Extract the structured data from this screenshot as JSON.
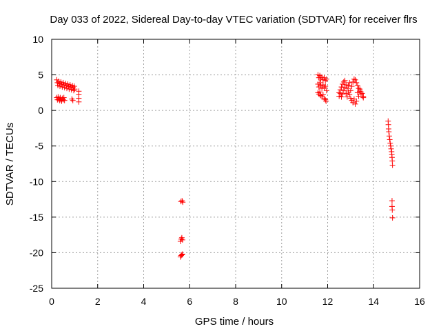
{
  "chart_data": {
    "type": "scatter",
    "title": "Day 033 of 2022, Sidereal Day-to-day VTEC variation (SDTVAR) for receiver flrs",
    "xlabel": "GPS time / hours",
    "ylabel": "SDTVAR / TECUs",
    "xlim": [
      0,
      16
    ],
    "ylim": [
      -25,
      10
    ],
    "xticks": [
      "0",
      "2",
      "4",
      "6",
      "8",
      "10",
      "12",
      "14",
      "16"
    ],
    "yticks": [
      "10",
      "5",
      "0",
      "-5",
      "-10",
      "-15",
      "-20",
      "-25"
    ],
    "grid": true,
    "marker": "plus",
    "color": "#ff0000",
    "series": [
      {
        "points": [
          [
            0.22,
            4.3
          ],
          [
            0.25,
            3.9
          ],
          [
            0.27,
            3.5
          ],
          [
            0.3,
            4.1
          ],
          [
            0.33,
            3.8
          ],
          [
            0.36,
            3.4
          ],
          [
            0.4,
            4.0
          ],
          [
            0.43,
            3.7
          ],
          [
            0.46,
            3.3
          ],
          [
            0.5,
            3.9
          ],
          [
            0.53,
            3.6
          ],
          [
            0.56,
            3.2
          ],
          [
            0.6,
            3.8
          ],
          [
            0.63,
            3.5
          ],
          [
            0.66,
            3.1
          ],
          [
            0.7,
            3.7
          ],
          [
            0.73,
            3.4
          ],
          [
            0.76,
            3.0
          ],
          [
            0.8,
            3.6
          ],
          [
            0.83,
            3.3
          ],
          [
            0.86,
            2.9
          ],
          [
            0.9,
            3.5
          ],
          [
            0.93,
            3.2
          ],
          [
            0.96,
            2.8
          ],
          [
            0.98,
            3.4
          ],
          [
            1.0,
            3.0
          ],
          [
            0.22,
            1.8
          ],
          [
            0.25,
            1.5
          ],
          [
            0.28,
            1.9
          ],
          [
            0.31,
            1.6
          ],
          [
            0.34,
            1.4
          ],
          [
            0.37,
            1.8
          ],
          [
            0.4,
            1.5
          ],
          [
            0.43,
            1.3
          ],
          [
            0.46,
            1.7
          ],
          [
            0.5,
            1.5
          ],
          [
            0.53,
            1.8
          ],
          [
            0.56,
            1.4
          ],
          [
            0.88,
            1.6
          ],
          [
            0.92,
            1.4
          ],
          [
            1.18,
            2.7
          ],
          [
            1.18,
            2.2
          ],
          [
            1.18,
            1.7
          ],
          [
            1.18,
            1.2
          ],
          [
            5.62,
            -12.8
          ],
          [
            5.67,
            -12.7
          ],
          [
            5.7,
            -12.9
          ],
          [
            5.6,
            -18.4
          ],
          [
            5.63,
            -18.1
          ],
          [
            5.66,
            -17.9
          ],
          [
            5.69,
            -18.2
          ],
          [
            5.6,
            -20.6
          ],
          [
            5.63,
            -20.4
          ],
          [
            5.66,
            -20.3
          ],
          [
            5.69,
            -20.2
          ],
          [
            11.58,
            5.0
          ],
          [
            11.62,
            4.6
          ],
          [
            11.66,
            4.9
          ],
          [
            11.7,
            4.4
          ],
          [
            11.75,
            4.7
          ],
          [
            11.8,
            4.3
          ],
          [
            11.85,
            4.6
          ],
          [
            11.9,
            4.2
          ],
          [
            11.58,
            3.7
          ],
          [
            11.62,
            3.3
          ],
          [
            11.66,
            3.9
          ],
          [
            11.7,
            3.5
          ],
          [
            11.75,
            3.1
          ],
          [
            11.8,
            3.6
          ],
          [
            11.85,
            3.2
          ],
          [
            11.9,
            3.4
          ],
          [
            11.58,
            2.5
          ],
          [
            11.62,
            2.3
          ],
          [
            11.66,
            2.6
          ],
          [
            11.7,
            2.1
          ],
          [
            11.75,
            1.9
          ],
          [
            11.8,
            2.2
          ],
          [
            11.85,
            1.7
          ],
          [
            11.9,
            1.5
          ],
          [
            11.93,
            1.3
          ],
          [
            11.95,
            4.4
          ],
          [
            11.95,
            2.8
          ],
          [
            12.5,
            2.5
          ],
          [
            12.55,
            2.9
          ],
          [
            12.6,
            3.3
          ],
          [
            12.65,
            3.7
          ],
          [
            12.7,
            4.0
          ],
          [
            12.75,
            4.2
          ],
          [
            12.8,
            3.6
          ],
          [
            12.85,
            3.1
          ],
          [
            12.9,
            2.6
          ],
          [
            12.95,
            2.2
          ],
          [
            13.0,
            2.8
          ],
          [
            13.05,
            3.4
          ],
          [
            13.1,
            4.0
          ],
          [
            13.15,
            4.4
          ],
          [
            13.2,
            4.3
          ],
          [
            13.25,
            3.9
          ],
          [
            13.3,
            3.5
          ],
          [
            13.35,
            3.1
          ],
          [
            13.4,
            2.7
          ],
          [
            13.45,
            2.3
          ],
          [
            13.5,
            2.0
          ],
          [
            13.55,
            1.8
          ],
          [
            12.5,
            2.0
          ],
          [
            12.55,
            2.4
          ],
          [
            12.6,
            1.9
          ],
          [
            12.65,
            2.3
          ],
          [
            12.7,
            2.8
          ],
          [
            12.75,
            3.2
          ],
          [
            12.8,
            2.4
          ],
          [
            12.85,
            1.9
          ],
          [
            12.9,
            3.5
          ],
          [
            12.95,
            3.9
          ],
          [
            13.0,
            1.7
          ],
          [
            13.05,
            1.4
          ],
          [
            13.1,
            1.1
          ],
          [
            13.15,
            1.6
          ],
          [
            13.2,
            0.9
          ],
          [
            13.25,
            1.3
          ],
          [
            13.3,
            2.5
          ],
          [
            13.35,
            2.0
          ],
          [
            13.4,
            3.0
          ],
          [
            13.45,
            2.6
          ],
          [
            13.5,
            2.4
          ],
          [
            13.55,
            2.0
          ],
          [
            14.63,
            -1.5
          ],
          [
            14.64,
            -2.0
          ],
          [
            14.65,
            -2.6
          ],
          [
            14.66,
            -3.0
          ],
          [
            14.68,
            -3.6
          ],
          [
            14.7,
            -4.1
          ],
          [
            14.72,
            -4.6
          ],
          [
            14.74,
            -5.0
          ],
          [
            14.76,
            -5.4
          ],
          [
            14.78,
            -5.8
          ],
          [
            14.79,
            -6.2
          ],
          [
            14.8,
            -6.6
          ],
          [
            14.81,
            -7.1
          ],
          [
            14.82,
            -7.7
          ],
          [
            14.8,
            -12.7
          ],
          [
            14.8,
            -13.5
          ],
          [
            14.81,
            -14.0
          ],
          [
            14.82,
            -15.1
          ]
        ]
      }
    ]
  }
}
